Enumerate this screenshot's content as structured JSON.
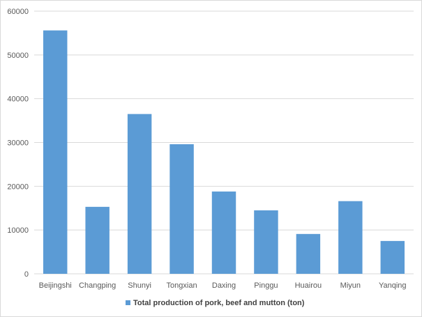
{
  "chart_data": {
    "type": "bar",
    "title": "",
    "xlabel": "",
    "ylabel": "",
    "categories": [
      "Beijingshi",
      "Changping",
      "Shunyi",
      "Tongxian",
      "Daxing",
      "Pinggu",
      "Huairou",
      "Miyun",
      "Yanqing"
    ],
    "series": [
      {
        "name": "Total production of pork, beef and mutton (ton)",
        "values": [
          55600,
          15300,
          36500,
          29600,
          18800,
          14500,
          9100,
          16600,
          7500
        ],
        "color": "#5b9bd5"
      }
    ],
    "ylim": [
      0,
      60000
    ],
    "yticks": [
      "0",
      "10000",
      "20000",
      "30000",
      "40000",
      "50000",
      "60000"
    ],
    "grid": true,
    "legend_position": "bottom"
  }
}
